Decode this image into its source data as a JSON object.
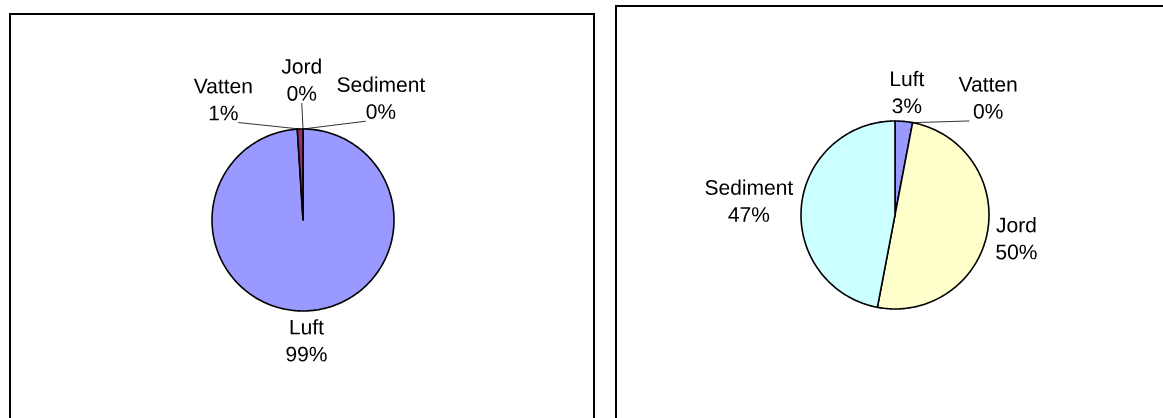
{
  "chart_data": [
    {
      "type": "pie",
      "categories": [
        "Luft",
        "Vatten",
        "Jord",
        "Sediment"
      ],
      "values": [
        99,
        1,
        0,
        0
      ],
      "value_labels": [
        "99%",
        "1%",
        "0%",
        "0%"
      ],
      "colors": [
        "#9999ff",
        "#993366",
        "#ffffcc",
        "#ccffff"
      ]
    },
    {
      "type": "pie",
      "categories": [
        "Luft",
        "Vatten",
        "Jord",
        "Sediment"
      ],
      "values": [
        3,
        0,
        50,
        47
      ],
      "value_labels": [
        "3%",
        "0%",
        "50%",
        "47%"
      ],
      "colors": [
        "#9999ff",
        "#993366",
        "#ffffcc",
        "#ccffff"
      ]
    }
  ]
}
